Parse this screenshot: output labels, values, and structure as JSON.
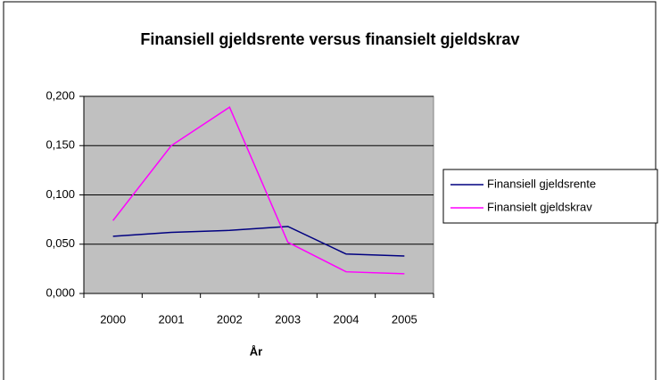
{
  "chart_data": {
    "type": "line",
    "title": "Finansiell gjeldsrente versus finansielt gjeldskrav",
    "x_label": "År",
    "categories": [
      "2000",
      "2001",
      "2002",
      "2003",
      "2004",
      "2005"
    ],
    "series": [
      {
        "name": "Finansiell gjeldsrente",
        "color": "#000080",
        "values": [
          0.058,
          0.062,
          0.064,
          0.068,
          0.04,
          0.038
        ]
      },
      {
        "name": "Finansielt gjeldskrav",
        "color": "#ff00ff",
        "values": [
          0.074,
          0.15,
          0.189,
          0.052,
          0.022,
          0.02
        ]
      }
    ],
    "ylim": [
      0,
      0.2
    ],
    "yticks": [
      {
        "value": 0,
        "label": "0,000"
      },
      {
        "value": 0.05,
        "label": "0,050"
      },
      {
        "value": 0.1,
        "label": "0,100"
      },
      {
        "value": 0.15,
        "label": "0,150"
      },
      {
        "value": 0.2,
        "label": "0,200"
      }
    ],
    "grid": true,
    "legend": "right"
  }
}
